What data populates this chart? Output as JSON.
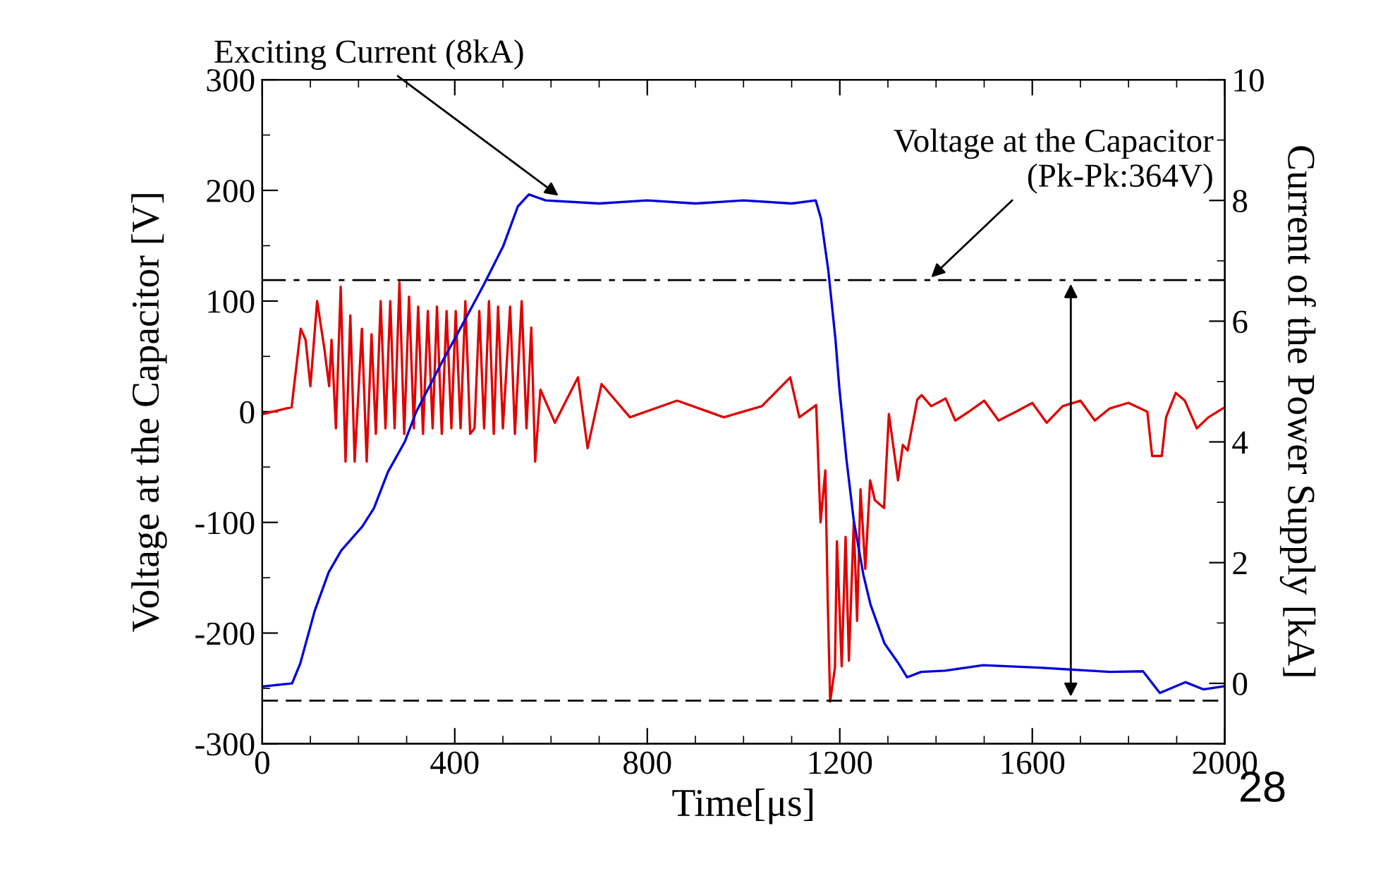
{
  "chart_data": {
    "type": "line",
    "xlabel": "Time[μs]",
    "ylabel": "Voltage at the Capacitor [V]",
    "y2label": "Current of the Power Supply [kA]",
    "xlim": [
      0,
      2000
    ],
    "xticks": [
      0,
      400,
      800,
      1200,
      1600,
      2000
    ],
    "ylim": [
      -300,
      300
    ],
    "yticks": [
      -300,
      -200,
      -100,
      0,
      100,
      200,
      300
    ],
    "y2lim": [
      -1,
      10
    ],
    "y2ticks": [
      0,
      2,
      4,
      6,
      8,
      10
    ],
    "grid": false,
    "marker": "none",
    "line_style": "solid",
    "series": [
      {
        "color": "#e00000",
        "x": [
          2,
          61,
          80,
          90,
          100,
          114,
          129,
          139,
          144,
          153,
          163,
          173,
          183,
          192,
          207,
          217,
          227,
          236,
          246,
          256,
          266,
          275,
          285,
          295,
          305,
          315,
          324,
          334,
          344,
          354,
          363,
          373,
          383,
          393,
          402,
          412,
          422,
          432,
          441,
          451,
          461,
          471,
          481,
          490,
          500,
          515,
          525,
          539,
          549,
          559,
          567,
          578,
          608,
          656,
          676,
          705,
          764,
          862,
          959,
          1038,
          1097,
          1116,
          1151,
          1160,
          1170,
          1175,
          1180,
          1190,
          1194,
          1204,
          1212,
          1219,
          1229,
          1236,
          1243,
          1253,
          1263,
          1273,
          1292,
          1302,
          1321,
          1331,
          1341,
          1361,
          1370,
          1390,
          1420,
          1440,
          1468,
          1500,
          1530,
          1566,
          1600,
          1630,
          1663,
          1700,
          1730,
          1761,
          1800,
          1839,
          1849,
          1869,
          1878,
          1898,
          1917,
          1942,
          1966,
          1996
        ],
        "values": [
          -2,
          4,
          75,
          65,
          23,
          100,
          57,
          23,
          65,
          -15,
          113,
          -45,
          87,
          -45,
          75,
          -45,
          70,
          -20,
          100,
          -15,
          100,
          -15,
          117,
          -20,
          104,
          -15,
          95,
          -20,
          91,
          -15,
          95,
          -20,
          91,
          -15,
          91,
          -15,
          100,
          -20,
          -15,
          91,
          -15,
          100,
          -20,
          95,
          -15,
          95,
          -20,
          100,
          -15,
          76,
          -45,
          20,
          -10,
          31,
          -33,
          25,
          -5,
          10,
          -5,
          5,
          31,
          -5,
          6,
          -100,
          -53,
          -172,
          -262,
          -231,
          -117,
          -230,
          -113,
          -225,
          -100,
          -189,
          -70,
          -142,
          -62,
          -80,
          -87,
          -2,
          -62,
          -30,
          -35,
          11,
          15,
          5,
          12,
          -8,
          0,
          10,
          -8,
          0,
          8,
          -10,
          5,
          10,
          -8,
          3,
          8,
          0,
          -40,
          -40,
          -5,
          17,
          10,
          -15,
          -5,
          3
        ]
      },
      {
        "color": "#0000dd",
        "axis": "y2",
        "x": [
          3,
          62,
          79,
          109,
          138,
          164,
          208,
          232,
          261,
          296,
          320,
          372,
          413,
          460,
          501,
          531,
          554,
          589,
          700,
          800,
          900,
          1000,
          1100,
          1150,
          1161,
          1176,
          1191,
          1199,
          1214,
          1229,
          1249,
          1264,
          1293,
          1322,
          1340,
          1369,
          1419,
          1498,
          1615,
          1762,
          1830,
          1865,
          1918,
          1956,
          1997
        ],
        "values": [
          -0.05,
          0,
          0.33,
          1.2,
          1.84,
          2.2,
          2.6,
          2.9,
          3.5,
          4.0,
          4.5,
          5.3,
          5.9,
          6.6,
          7.25,
          7.9,
          8.1,
          8.0,
          7.95,
          8.0,
          7.95,
          8.0,
          7.95,
          8.0,
          7.7,
          6.85,
          5.7,
          4.9,
          3.7,
          2.7,
          1.8,
          1.3,
          0.66,
          0.33,
          0.1,
          0.19,
          0.21,
          0.3,
          0.26,
          0.19,
          0.2,
          -0.16,
          0.02,
          -0.1,
          -0.05
        ]
      }
    ],
    "ref_lines": [
      {
        "axis": "y",
        "value": 119,
        "color": "#000000",
        "line_style": "dashdot"
      },
      {
        "axis": "y",
        "value": -261,
        "color": "#000000",
        "line_style": "dashed"
      }
    ],
    "annotations": [
      {
        "text": "Exciting Current (8kA)",
        "x": 622,
        "y": 193
      },
      {
        "text": "Voltage at the Capacitor\n(Pk-Pk:364V)",
        "x": 1384,
        "y": 119
      },
      "28"
    ]
  }
}
